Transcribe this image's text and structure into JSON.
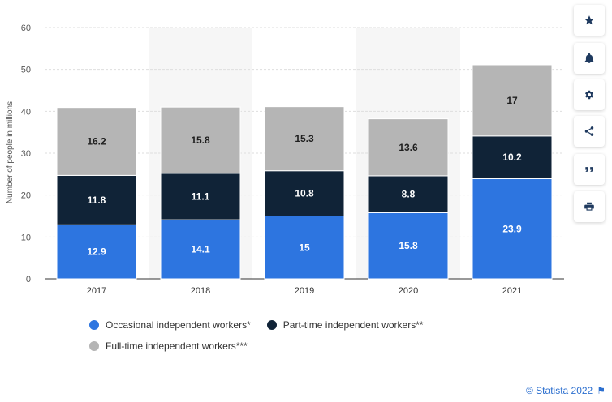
{
  "chart_data": {
    "type": "bar",
    "stacked": true,
    "categories": [
      "2017",
      "2018",
      "2019",
      "2020",
      "2021"
    ],
    "series": [
      {
        "name": "Occasional independent workers*",
        "values": [
          12.9,
          14.1,
          15,
          15.8,
          23.9
        ],
        "color": "#2d75e0"
      },
      {
        "name": "Part-time independent workers**",
        "values": [
          11.8,
          11.1,
          10.8,
          8.8,
          10.2
        ],
        "color": "#102337"
      },
      {
        "name": "Full-time independent workers***",
        "values": [
          16.2,
          15.8,
          15.3,
          13.6,
          17
        ],
        "color": "#b5b5b5"
      }
    ],
    "ylabel": "Number of people in millions",
    "ylim": [
      0,
      60
    ],
    "yticks": [
      0,
      10,
      20,
      30,
      40,
      50,
      60
    ],
    "grid": true,
    "legend_position": "bottom"
  },
  "sidebar": {
    "buttons": [
      {
        "icon": "star-icon"
      },
      {
        "icon": "bell-icon"
      },
      {
        "icon": "gear-icon"
      },
      {
        "icon": "share-icon"
      },
      {
        "icon": "quote-icon"
      },
      {
        "icon": "print-icon"
      }
    ]
  },
  "credit": "© Statista 2022",
  "colors": {
    "accent": "#2c6fcf",
    "sidebar_icon": "#1f3a5f"
  }
}
